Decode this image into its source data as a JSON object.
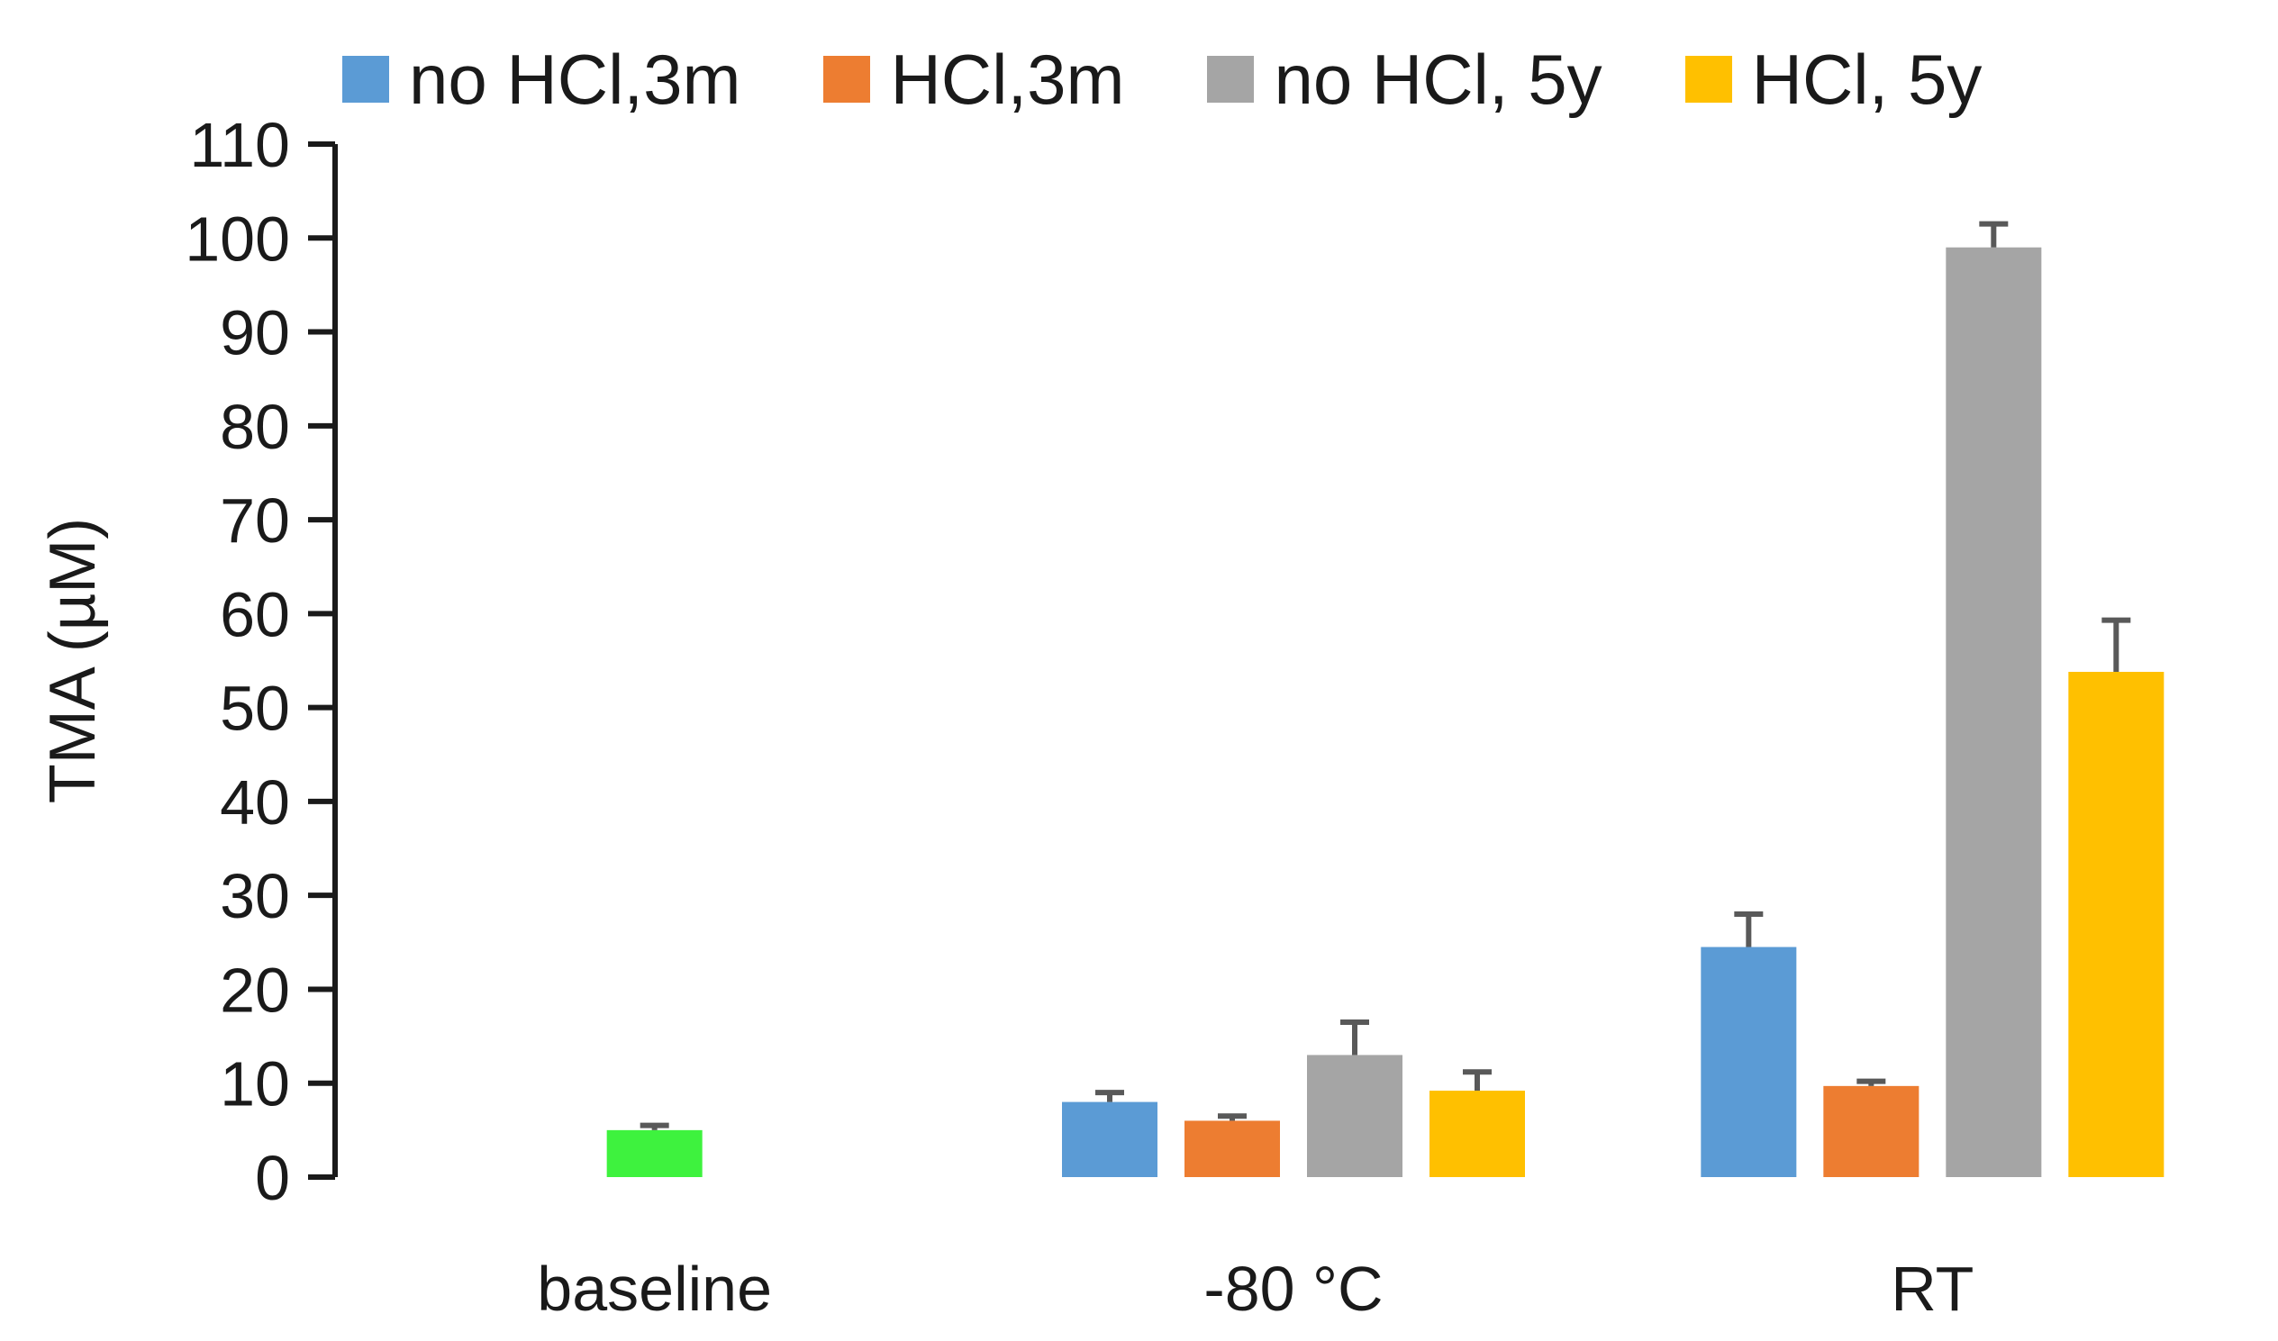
{
  "chart_data": {
    "type": "bar",
    "title": "",
    "ylabel": "TMA (µM)",
    "xlabel": "",
    "ylim": [
      0,
      110
    ],
    "yticks": [
      0,
      10,
      20,
      30,
      40,
      50,
      60,
      70,
      80,
      90,
      100,
      110
    ],
    "grid": false,
    "legend_position": "top",
    "categories": [
      "baseline",
      "-80 °C",
      "RT"
    ],
    "series": [
      {
        "name": "no HCl,3m",
        "color": "#5b9bd5",
        "values": [
          null,
          8,
          24.5
        ],
        "errors": [
          null,
          1,
          3.5
        ]
      },
      {
        "name": "HCl,3m",
        "color": "#ed7d31",
        "values": [
          null,
          6,
          9.7
        ],
        "errors": [
          null,
          0.5,
          0.5
        ]
      },
      {
        "name": "no HCl, 5y",
        "color": "#a5a5a5",
        "values": [
          null,
          13,
          99
        ],
        "errors": [
          null,
          3.5,
          2.5
        ]
      },
      {
        "name": "HCl, 5y",
        "color": "#ffc000",
        "values": [
          null,
          9.2,
          53.8
        ],
        "errors": [
          null,
          2,
          5.5
        ]
      }
    ],
    "baseline_bar": {
      "category": "baseline",
      "value": 5,
      "error": 0.5,
      "color": "#3ef23e"
    }
  }
}
